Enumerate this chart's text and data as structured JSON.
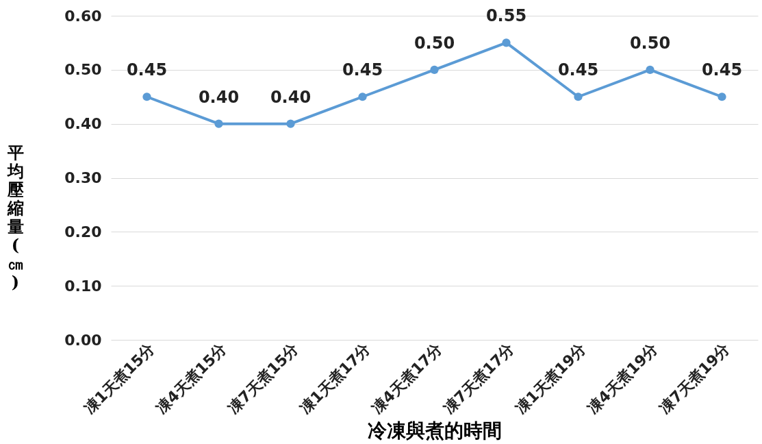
{
  "chart_data": {
    "type": "line",
    "xlabel": "冷凍與煮的時間",
    "ylabel": "平均壓縮量(㎝)",
    "categories": [
      "凍1天煮15分",
      "凍4天煮15分",
      "凍7天煮15分",
      "凍1天煮17分",
      "凍4天煮17分",
      "凍7天煮17分",
      "凍1天煮19分",
      "凍4天煮19分",
      "凍7天煮19分"
    ],
    "values": [
      0.45,
      0.4,
      0.4,
      0.45,
      0.5,
      0.55,
      0.45,
      0.5,
      0.45
    ],
    "color": "#5b9bd5",
    "ylim": [
      0,
      0.6
    ],
    "yticks": [
      {
        "value": 0,
        "label": "0.00"
      },
      {
        "value": 0.1,
        "label": "0.10"
      },
      {
        "value": 0.2,
        "label": "0.20"
      },
      {
        "value": 0.3,
        "label": "0.30"
      },
      {
        "value": 0.4,
        "label": "0.40"
      },
      {
        "value": 0.5,
        "label": "0.50"
      },
      {
        "value": 0.6,
        "label": "0.60"
      }
    ],
    "value_labels": [
      "0.45",
      "0.40",
      "0.40",
      "0.45",
      "0.50",
      "0.55",
      "0.45",
      "0.50",
      "0.45"
    ],
    "grid": "y",
    "marker": "circle",
    "line_style": "solid"
  }
}
